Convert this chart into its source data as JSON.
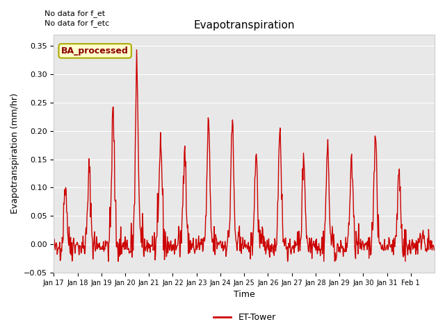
{
  "title": "Evapotranspiration",
  "ylabel": "Evapotranspiration (mm/hr)",
  "xlabel": "Time",
  "ylim": [
    -0.05,
    0.37
  ],
  "yticks": [
    -0.05,
    0.0,
    0.05,
    0.1,
    0.15,
    0.2,
    0.25,
    0.3,
    0.35
  ],
  "line_color": "#cc0000",
  "line_width": 1.0,
  "bg_color": "#e8e8e8",
  "annotation_text": "BA_processed",
  "annotation_bg": "#ffffcc",
  "annotation_border": "#aaaa00",
  "top_left_text1": "No data for f_et",
  "top_left_text2": "No data for f_etc",
  "legend_label": "ET-Tower",
  "x_tick_labels": [
    "Jan 17",
    "Jan 18",
    "Jan 19",
    "Jan 20",
    "Jan 21",
    "Jan 22",
    "Jan 23",
    "Jan 24",
    "Jan 25",
    "Jan 26",
    "Jan 27",
    "Jan 28",
    "Jan 29",
    "Jan 30",
    "Jan 31",
    "Feb 1"
  ],
  "x_tick_positions": [
    0,
    1,
    2,
    3,
    4,
    5,
    6,
    7,
    8,
    9,
    10,
    11,
    12,
    13,
    14,
    15
  ],
  "n_days": 16,
  "peaks": [
    0.11,
    0.13,
    0.23,
    0.31,
    0.185,
    0.18,
    0.21,
    0.215,
    0.16,
    0.21,
    0.155,
    0.17,
    0.15,
    0.195,
    0.13,
    0.02
  ],
  "noise_levels": [
    0.015,
    0.015,
    0.02,
    0.02,
    0.02,
    0.015,
    0.015,
    0.015,
    0.015,
    0.015,
    0.015,
    0.015,
    0.015,
    0.015,
    0.015,
    0.01
  ]
}
